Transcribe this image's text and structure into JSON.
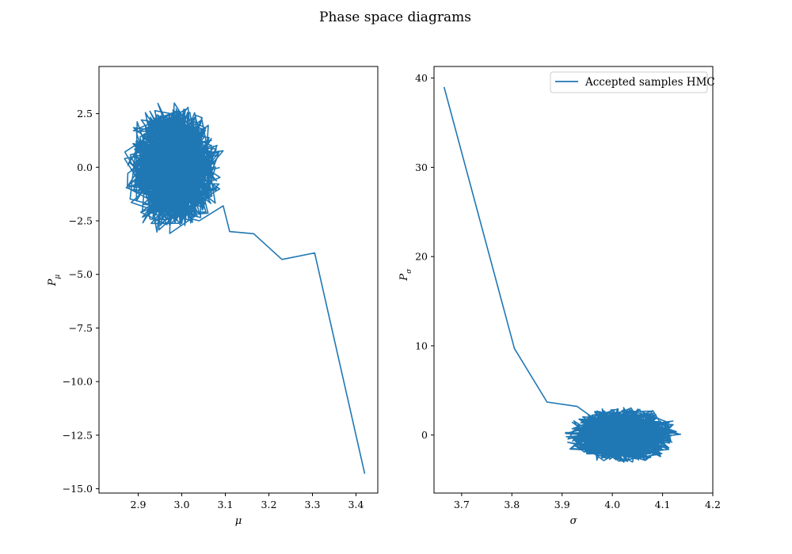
{
  "title": "Phase space diagrams",
  "chart_data": [
    {
      "type": "line",
      "xlabel": "μ",
      "ylabel": "P",
      "ylabel_sub": "μ",
      "xlim": [
        2.81,
        3.45
      ],
      "ylim": [
        -15.2,
        4.7
      ],
      "xticks": [
        2.9,
        3.0,
        3.1,
        3.2,
        3.3,
        3.4
      ],
      "xtick_labels": [
        "2.9",
        "3.0",
        "3.1",
        "3.2",
        "3.3",
        "3.4"
      ],
      "yticks": [
        2.5,
        0.0,
        -2.5,
        -5.0,
        -7.5,
        -10.0,
        -12.5,
        -15.0
      ],
      "ytick_labels": [
        "2.5",
        "0.0",
        "−2.5",
        "−5.0",
        "−7.5",
        "−10.0",
        "−12.5",
        "−15.0"
      ],
      "grid": false,
      "series": [
        {
          "color": "#1f77b4",
          "x": [
            3.42,
            3.305,
            3.23,
            3.165,
            3.11,
            3.095,
            3.04,
            3.02
          ],
          "y": [
            -14.3,
            -4.0,
            -4.3,
            -3.1,
            -3.0,
            -1.8,
            -2.5,
            -2.4
          ],
          "cluster": {
            "cx": 2.98,
            "cy": 0.0,
            "rx": 0.12,
            "ry": 3.3,
            "n": 900
          }
        }
      ]
    },
    {
      "type": "line",
      "xlabel": "σ",
      "ylabel": "P",
      "ylabel_sub": "σ",
      "xlim": [
        3.645,
        4.2
      ],
      "ylim": [
        -6.5,
        41.3
      ],
      "xticks": [
        3.7,
        3.8,
        3.9,
        4.0,
        4.1,
        4.2
      ],
      "xtick_labels": [
        "3.7",
        "3.8",
        "3.9",
        "4.0",
        "4.1",
        "4.2"
      ],
      "yticks": [
        0,
        10,
        20,
        30,
        40
      ],
      "ytick_labels": [
        "0",
        "10",
        "20",
        "30",
        "40"
      ],
      "grid": false,
      "legend": {
        "position": "top-right",
        "entries": [
          "Accepted samples HMC"
        ]
      },
      "series": [
        {
          "name": "Accepted samples HMC",
          "color": "#1f77b4",
          "x": [
            3.665,
            3.805,
            3.87,
            3.93,
            3.96
          ],
          "y": [
            39.0,
            9.7,
            3.7,
            3.2,
            2.0
          ],
          "cluster": {
            "cx": 4.02,
            "cy": 0.0,
            "rx": 0.12,
            "ry": 3.4,
            "n": 900
          }
        }
      ]
    }
  ]
}
